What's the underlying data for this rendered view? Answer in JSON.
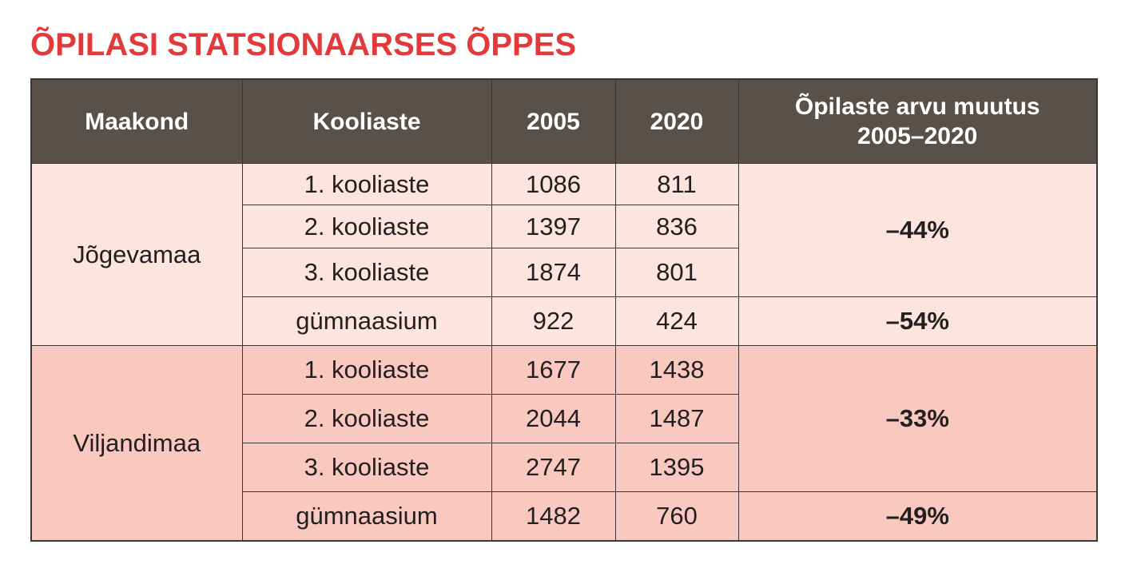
{
  "title": "ÕPILASI STATSIONAARSES ÕPPES",
  "colors": {
    "title": "#e23a3a",
    "header_bg": "#57504b",
    "header_text": "#ffffff",
    "group1_bg": "#fde4df",
    "group2_bg": "#f9c8be",
    "border": "#3b3632"
  },
  "table": {
    "headers": {
      "county": "Maakond",
      "level": "Kooliaste",
      "y2005": "2005",
      "y2020": "2020",
      "change_line1": "Õpilaste arvu muutus",
      "change_line2": "2005–2020"
    },
    "groups": [
      {
        "county": "Jõgevamaa",
        "rows": [
          {
            "level": "1. kooliaste",
            "y2005": "1086",
            "y2020": "811"
          },
          {
            "level": "2. kooliaste",
            "y2005": "1397",
            "y2020": "836"
          },
          {
            "level": "3. kooliaste",
            "y2005": "1874",
            "y2020": "801"
          },
          {
            "level": "gümnaasium",
            "y2005": "922",
            "y2020": "424"
          }
        ],
        "change_basic": "–44%",
        "change_gymnasium": "–54%"
      },
      {
        "county": "Viljandimaa",
        "rows": [
          {
            "level": "1. kooliaste",
            "y2005": "1677",
            "y2020": "1438"
          },
          {
            "level": "2. kooliaste",
            "y2005": "2044",
            "y2020": "1487"
          },
          {
            "level": "3. kooliaste",
            "y2005": "2747",
            "y2020": "1395"
          },
          {
            "level": "gümnaasium",
            "y2005": "1482",
            "y2020": "760"
          }
        ],
        "change_basic": "–33%",
        "change_gymnasium": "–49%"
      }
    ]
  }
}
